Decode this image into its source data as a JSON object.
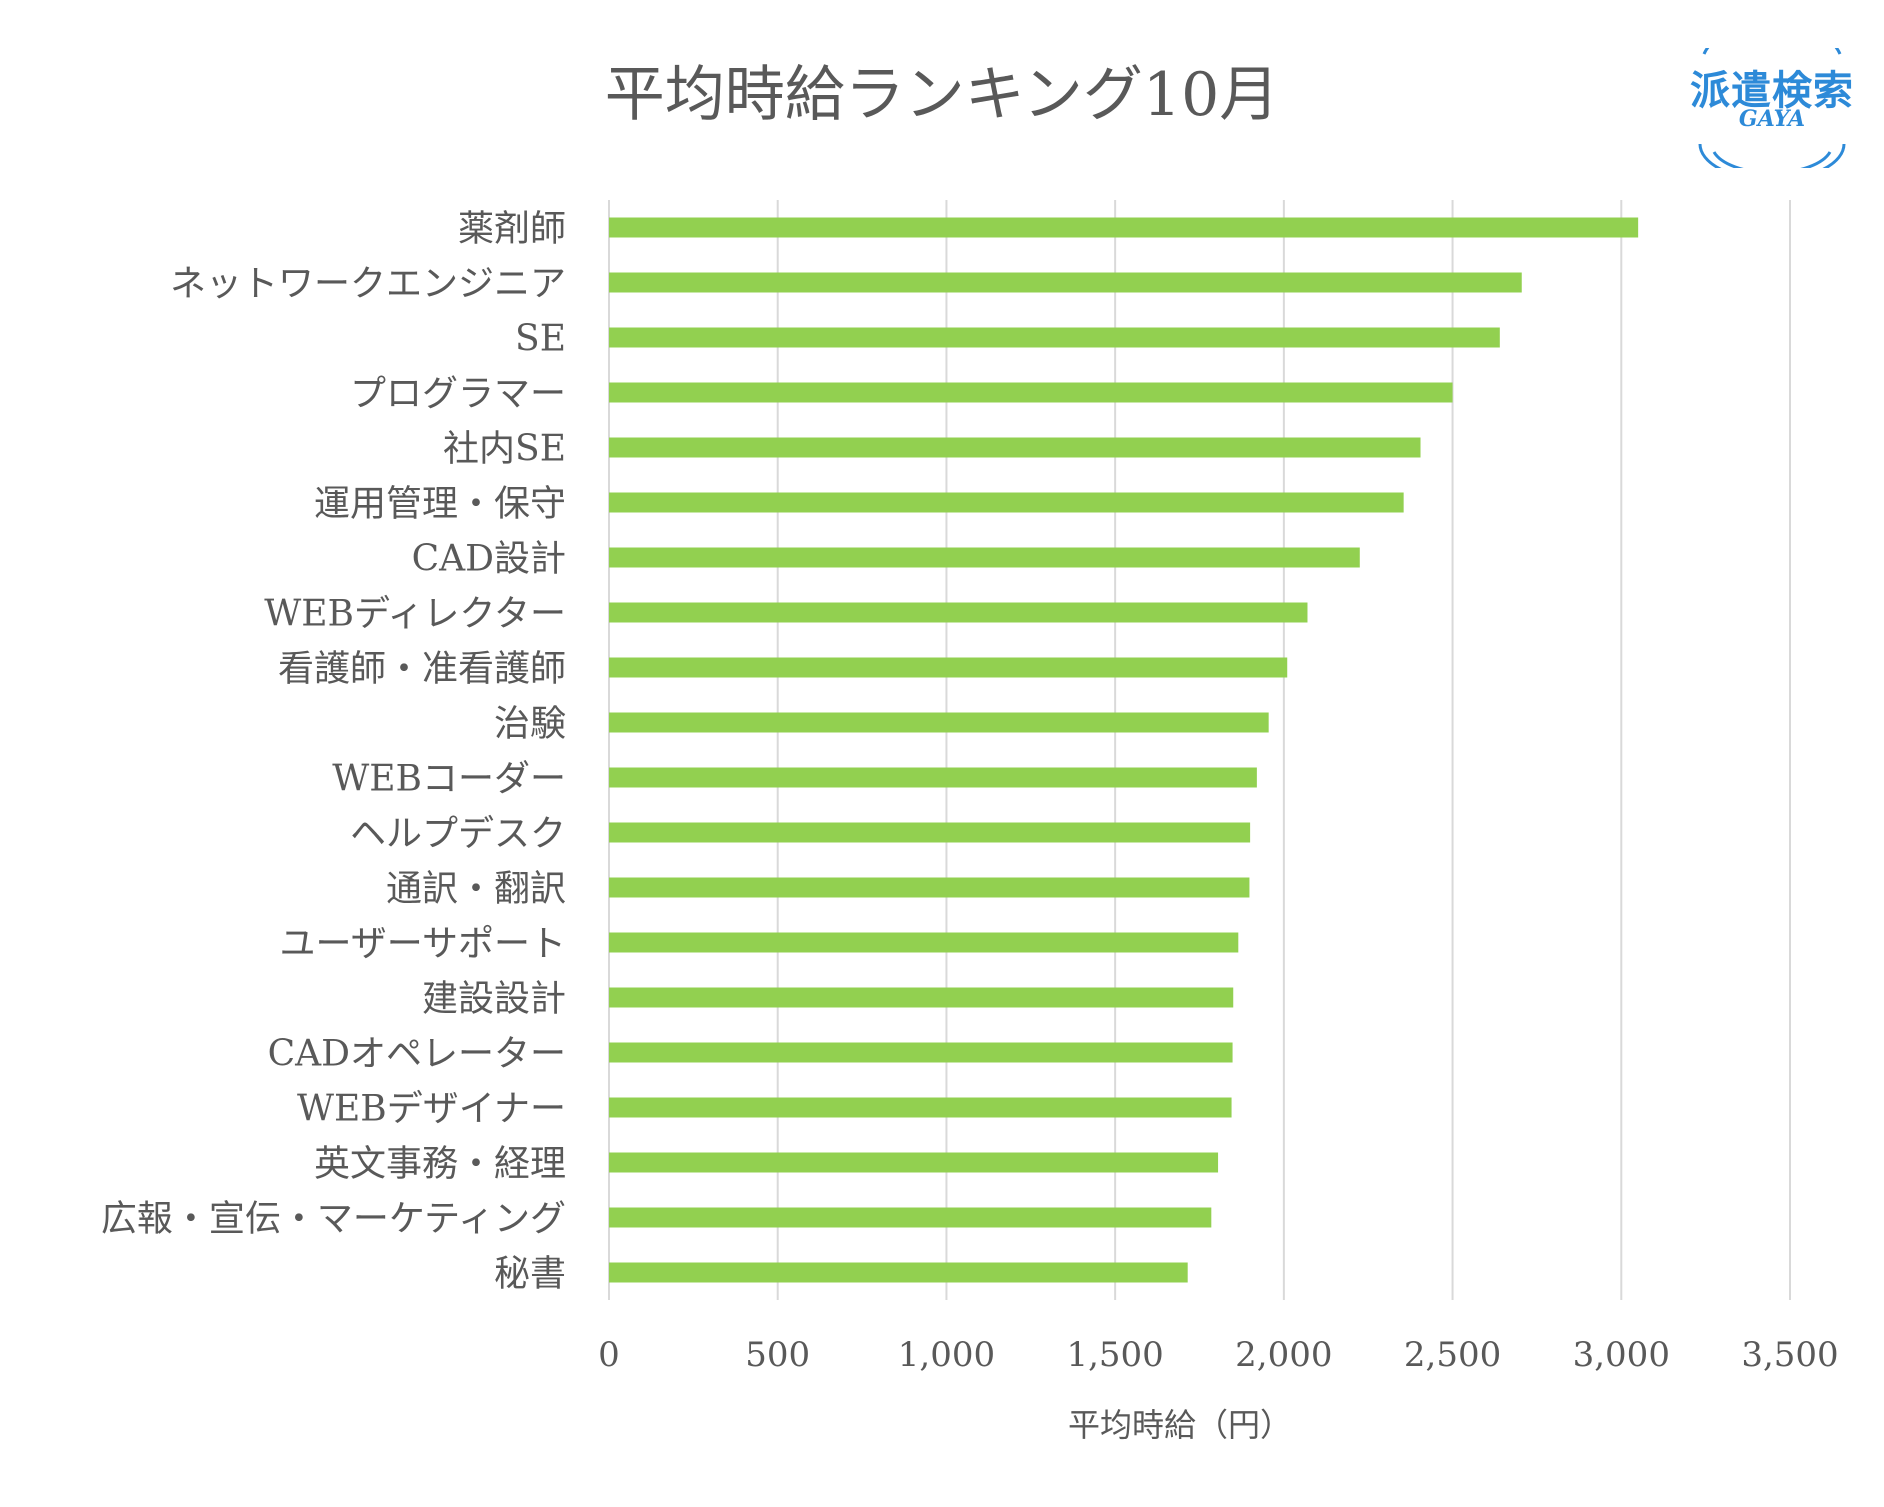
{
  "chart_data": {
    "type": "bar",
    "orientation": "horizontal",
    "title": "平均時給ランキング10月",
    "xlabel": "平均時給（円）",
    "ylabel": "",
    "xlim": [
      0,
      3500
    ],
    "x_ticks": [
      "0",
      "500",
      "1,000",
      "1,500",
      "2,000",
      "2,500",
      "3,000",
      "3,500"
    ],
    "x_tick_values": [
      0,
      500,
      1000,
      1500,
      2000,
      2500,
      3000,
      3500
    ],
    "grid": "vertical",
    "bar_color": "#92d050",
    "categories": [
      "薬剤師",
      "ネットワークエンジニア",
      "SE",
      "プログラマー",
      "社内SE",
      "運用管理・保守",
      "CAD設計",
      "WEBディレクター",
      "看護師・准看護師",
      "治験",
      "WEBコーダー",
      "ヘルプデスク",
      "通訳・翻訳",
      "ユーザーサポート",
      "建設設計",
      "CADオペレーター",
      "WEBデザイナー",
      "英文事務・経理",
      "広報・宣伝・マーケティング",
      "秘書"
    ],
    "values": [
      3050,
      2705,
      2640,
      2500,
      2405,
      2355,
      2225,
      2070,
      2010,
      1955,
      1920,
      1900,
      1898,
      1865,
      1850,
      1848,
      1845,
      1805,
      1785,
      1715
    ]
  },
  "logo": {
    "main_text": "派遣検索",
    "sub_text": "GAYA",
    "color": "#2d8ad8"
  }
}
